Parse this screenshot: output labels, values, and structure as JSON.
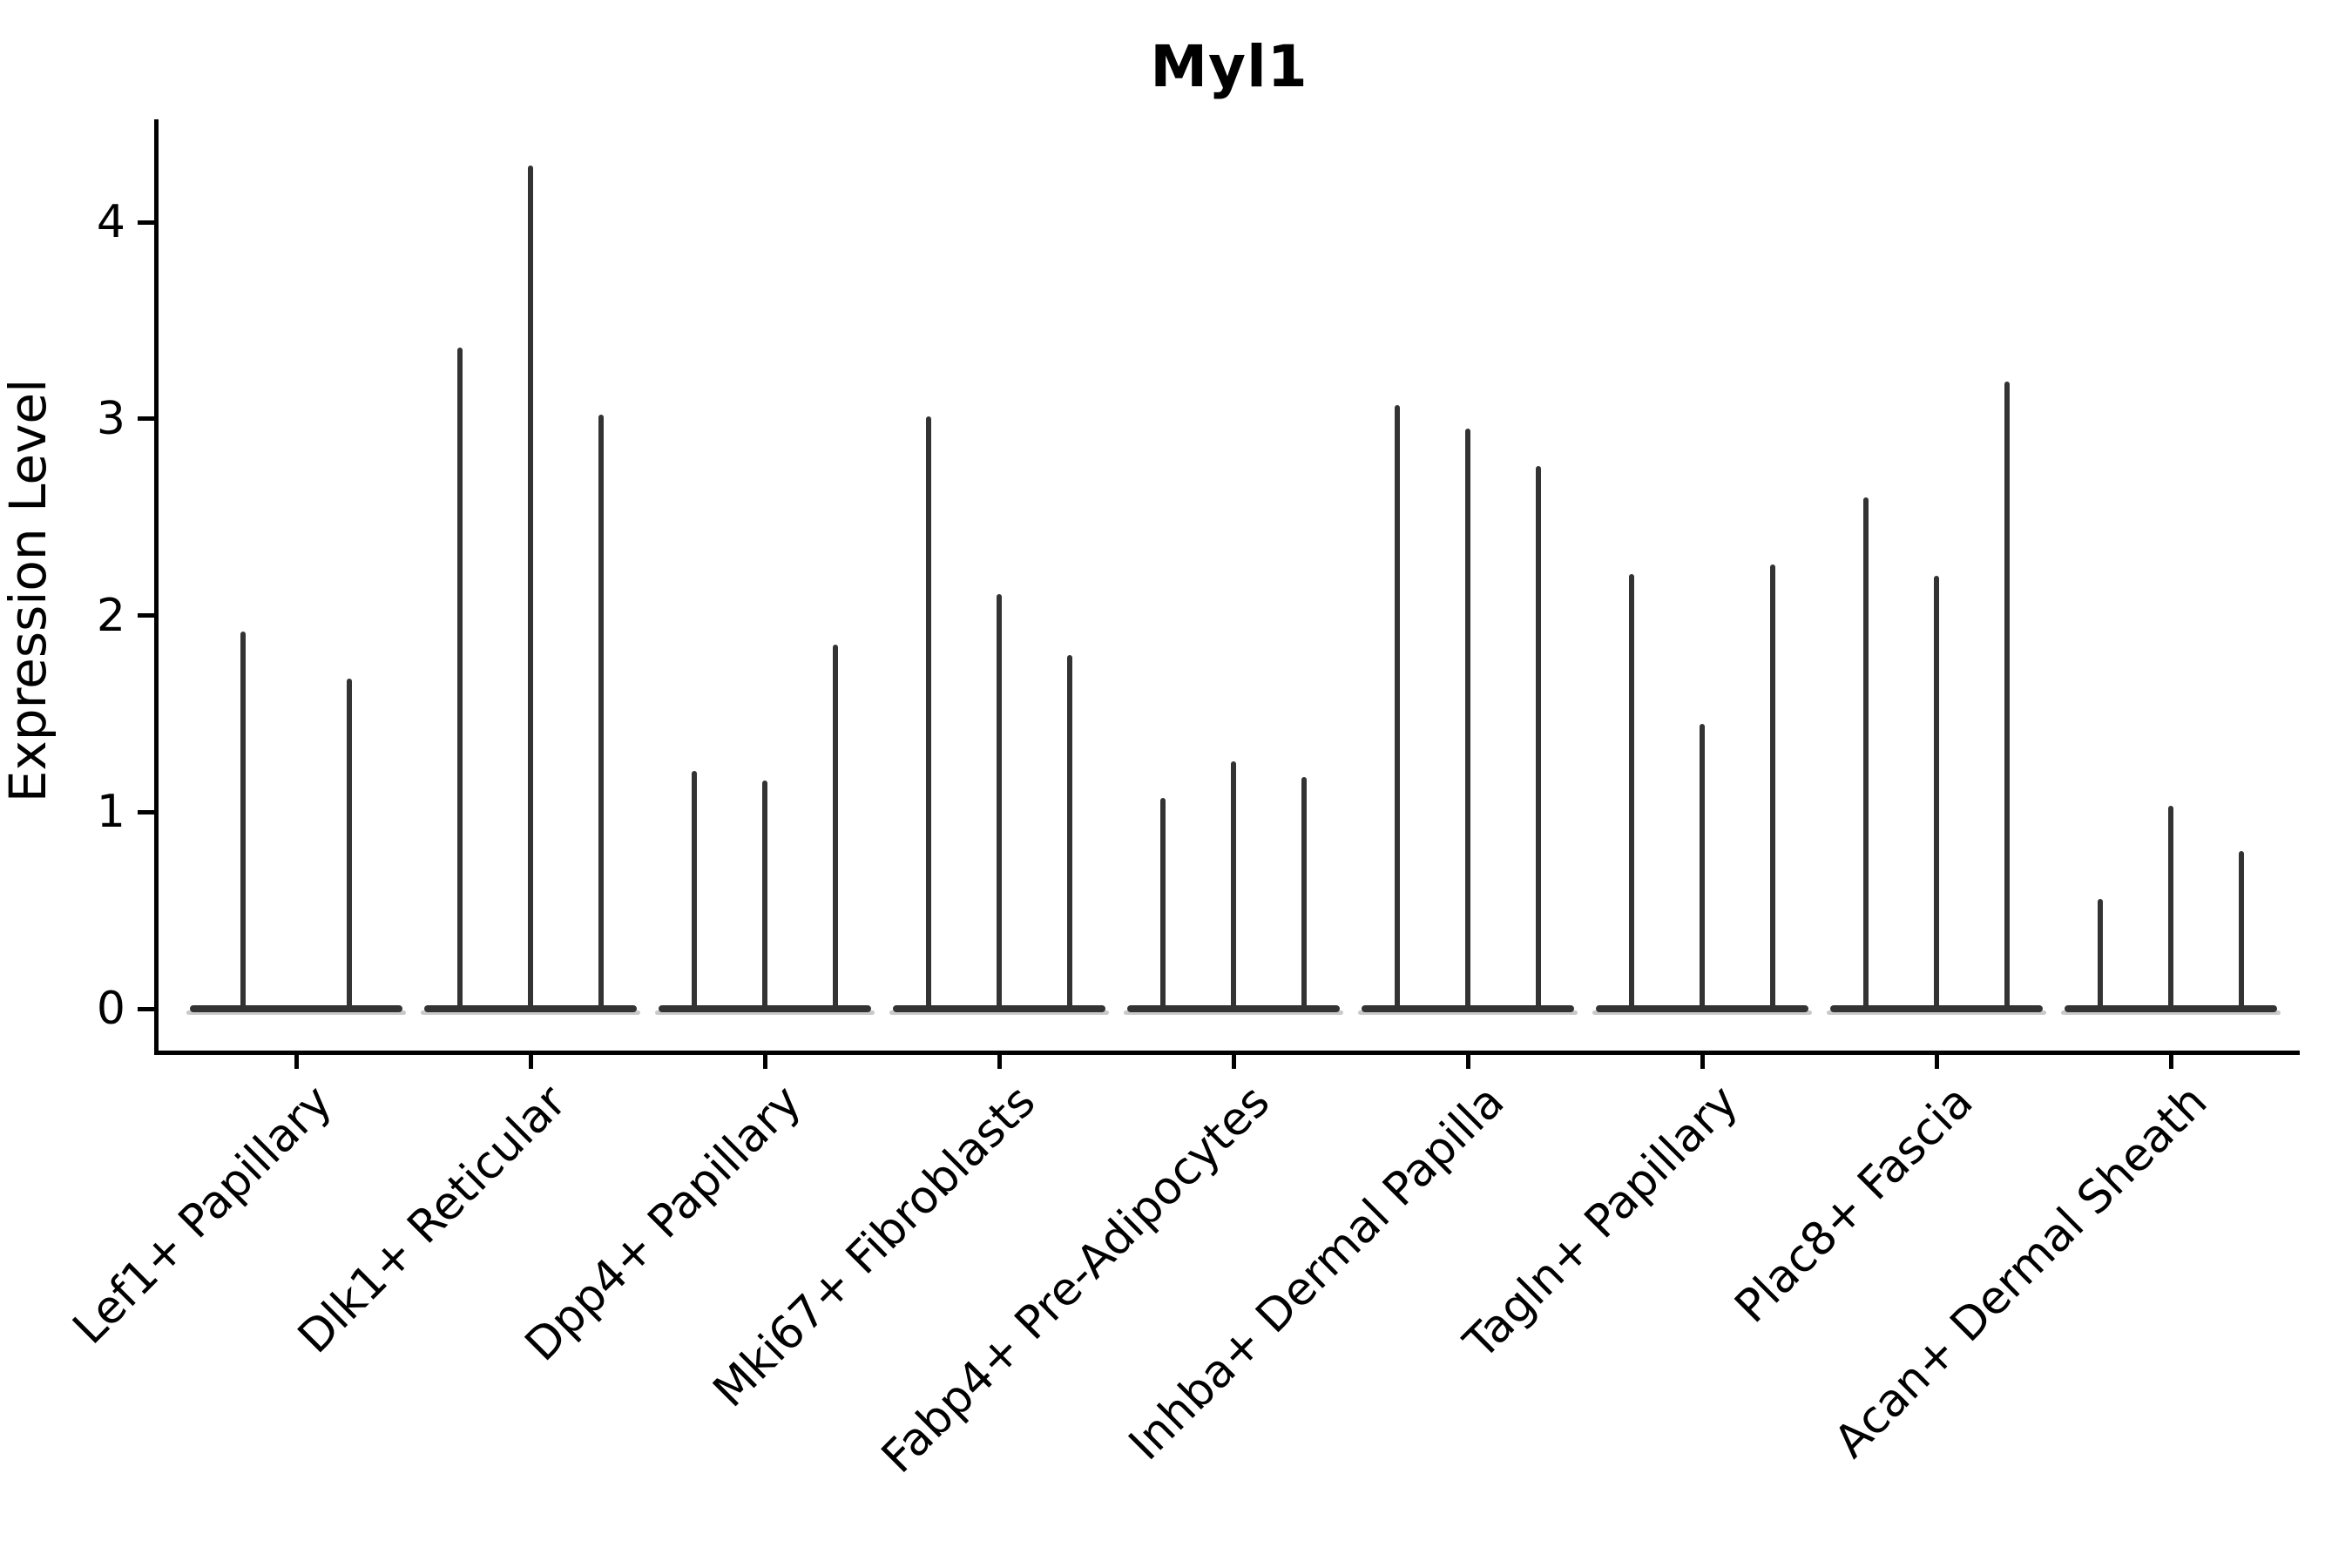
{
  "chart_data": {
    "type": "violin",
    "title": "Myl1",
    "ylabel": "Expression Level",
    "xlabel": "",
    "yticks": [
      "0",
      "1",
      "2",
      "3",
      "4"
    ],
    "ylim": [
      -0.22,
      4.52
    ],
    "grid": false,
    "legend": "none",
    "description": "Sparse single-cell expression violin plot: each category shows flat violins at 0 with thin vertical spikes; spike tops listed per violin",
    "categories": [
      "Lef1+ Papillary",
      "Dlk1+ Reticular",
      "Dpp4+ Papillary",
      "Mki67+ Fibroblasts",
      "Fabp4+ Pre-Adipocytes",
      "Inhba+ Dermal Papilla",
      "Tagln+ Papillary",
      "Plac8+ Fascia",
      "Acan+ Dermal Sheath"
    ],
    "violin_max_values": [
      [
        1.92,
        1.68
      ],
      [
        3.36,
        4.29,
        3.02
      ],
      [
        1.21,
        1.16,
        1.85
      ],
      [
        3.01,
        2.11,
        1.8
      ],
      [
        1.07,
        1.26,
        1.18
      ],
      [
        3.07,
        2.95,
        2.76
      ],
      [
        2.21,
        1.45,
        2.26
      ],
      [
        2.6,
        2.2,
        3.19
      ],
      [
        0.56,
        1.03,
        0.8
      ]
    ],
    "colors": {
      "spike": "#333333",
      "violin_fill": "#c9c9c9",
      "axis": "#000000",
      "background": "#ffffff"
    }
  }
}
